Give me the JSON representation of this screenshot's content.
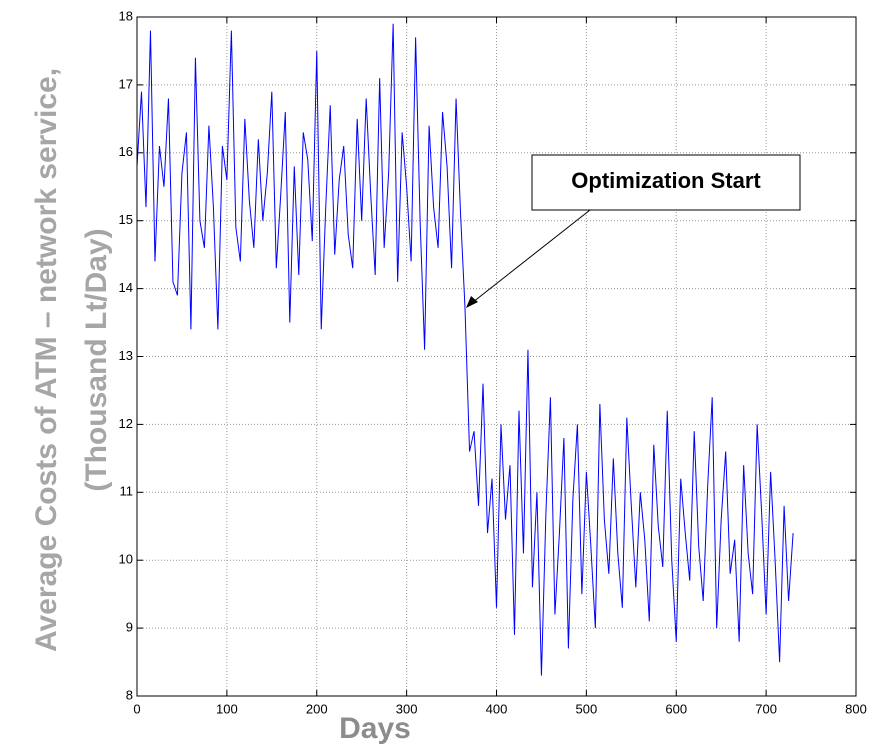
{
  "chart_data": {
    "type": "line",
    "ylabel": [
      "Average Costs of ATM – network service,",
      "(Thousand Lt/Day)"
    ],
    "xlabel": "Days",
    "annotation": "Optimization Start",
    "xlim": [
      0,
      800
    ],
    "xticks": [
      0,
      100,
      200,
      300,
      400,
      500,
      600,
      700,
      800
    ],
    "ylim": [
      8,
      18
    ],
    "yticks": [
      8,
      9,
      10,
      11,
      12,
      13,
      14,
      15,
      16,
      17,
      18
    ],
    "grid": true,
    "x": [
      0,
      5,
      10,
      15,
      20,
      25,
      30,
      35,
      40,
      45,
      50,
      55,
      60,
      65,
      70,
      75,
      80,
      85,
      90,
      95,
      100,
      105,
      110,
      115,
      120,
      125,
      130,
      135,
      140,
      145,
      150,
      155,
      160,
      165,
      170,
      175,
      180,
      185,
      190,
      195,
      200,
      205,
      210,
      215,
      220,
      225,
      230,
      235,
      240,
      245,
      250,
      255,
      260,
      265,
      270,
      275,
      280,
      285,
      290,
      295,
      300,
      305,
      310,
      315,
      320,
      325,
      330,
      335,
      340,
      345,
      350,
      355,
      360,
      365,
      370,
      375,
      380,
      385,
      390,
      395,
      400,
      405,
      410,
      415,
      420,
      425,
      430,
      435,
      440,
      445,
      450,
      455,
      460,
      465,
      470,
      475,
      480,
      485,
      490,
      495,
      500,
      505,
      510,
      515,
      520,
      525,
      530,
      535,
      540,
      545,
      550,
      555,
      560,
      565,
      570,
      575,
      580,
      585,
      590,
      595,
      600,
      605,
      610,
      615,
      620,
      625,
      630,
      635,
      640,
      645,
      650,
      655,
      660,
      665,
      670,
      675,
      680,
      685,
      690,
      695,
      700,
      705,
      710,
      715,
      720,
      725,
      730
    ],
    "series": [
      {
        "color": "#0000ff",
        "values": [
          15.8,
          16.9,
          15.2,
          17.8,
          14.4,
          16.1,
          15.5,
          16.8,
          14.1,
          13.9,
          15.7,
          16.3,
          13.4,
          17.4,
          15.0,
          14.6,
          16.4,
          15.2,
          13.4,
          16.1,
          15.6,
          17.8,
          14.9,
          14.4,
          16.5,
          15.3,
          14.6,
          16.2,
          15.0,
          15.7,
          16.9,
          14.3,
          15.4,
          16.6,
          13.5,
          15.8,
          14.2,
          16.3,
          15.9,
          14.7,
          17.5,
          13.4,
          15.2,
          16.7,
          14.5,
          15.6,
          16.1,
          14.8,
          14.3,
          16.5,
          15.0,
          16.8,
          15.4,
          14.2,
          17.1,
          14.6,
          15.7,
          17.9,
          14.1,
          16.3,
          15.5,
          14.4,
          17.7,
          15.0,
          13.1,
          16.4,
          15.2,
          14.6,
          16.6,
          15.8,
          14.3,
          16.8,
          15.1,
          13.7,
          11.6,
          11.9,
          10.8,
          12.6,
          10.4,
          11.2,
          9.3,
          12.0,
          10.6,
          11.4,
          8.9,
          12.2,
          10.1,
          13.1,
          9.6,
          11.0,
          8.3,
          10.7,
          12.4,
          9.2,
          10.4,
          11.8,
          8.7,
          10.9,
          12.0,
          9.5,
          11.3,
          10.2,
          9.0,
          12.3,
          10.6,
          9.8,
          11.5,
          10.1,
          9.3,
          12.1,
          10.8,
          9.6,
          11.0,
          10.3,
          9.1,
          11.7,
          10.5,
          9.9,
          12.2,
          10.0,
          8.8,
          11.2,
          10.4,
          9.7,
          11.9,
          10.2,
          9.4,
          11.1,
          12.4,
          9.0,
          10.6,
          11.6,
          9.8,
          10.3,
          8.8,
          11.4,
          10.1,
          9.5,
          12.0,
          10.7,
          9.2,
          11.3,
          10.0,
          8.5,
          10.8,
          9.4,
          10.4
        ]
      }
    ]
  }
}
